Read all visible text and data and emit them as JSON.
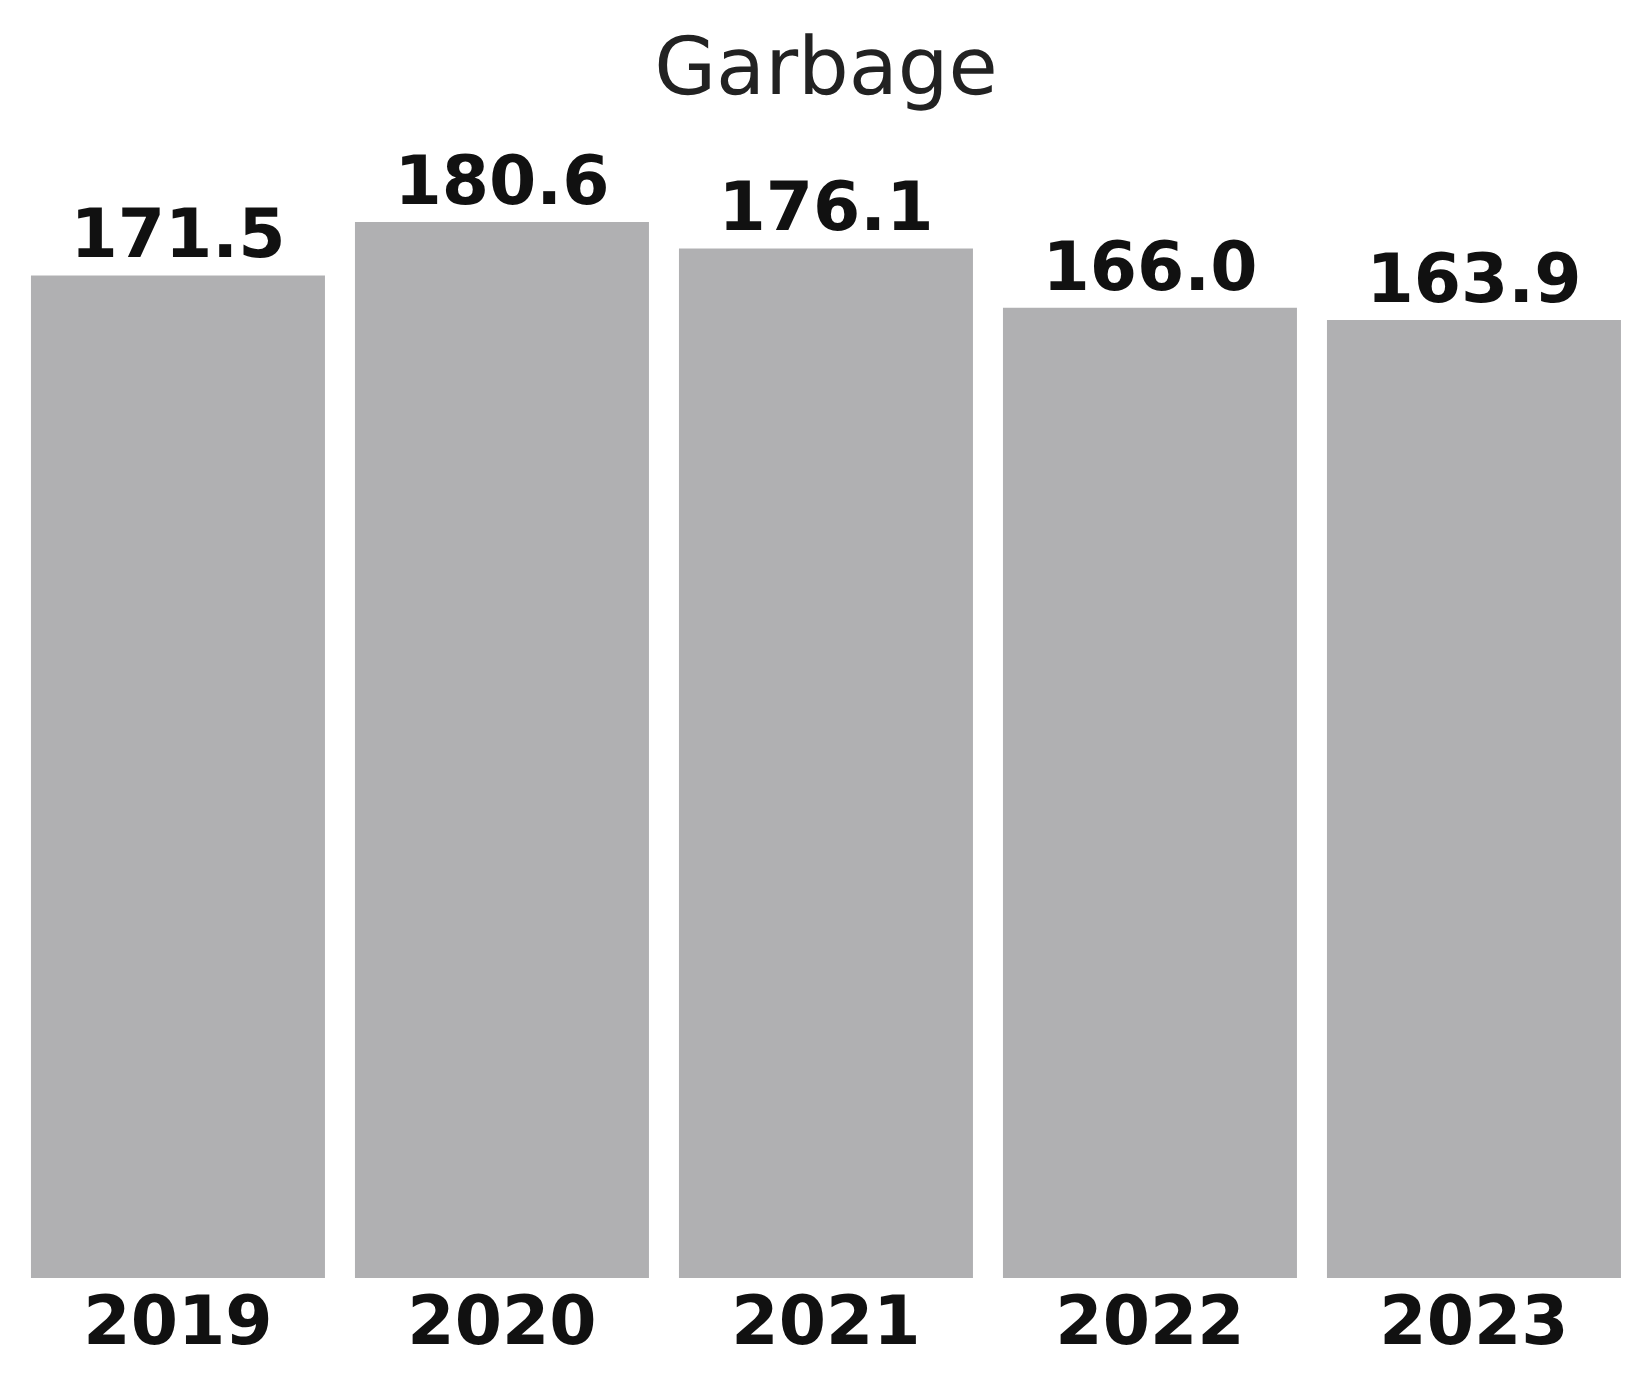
{
  "chart_data": {
    "type": "bar",
    "title": "Garbage",
    "categories": [
      "2019",
      "2020",
      "2021",
      "2022",
      "2023"
    ],
    "values": [
      171.5,
      180.6,
      176.1,
      166.0,
      163.9
    ],
    "value_labels": [
      "171.5",
      "180.6",
      "176.1",
      "166.0",
      "163.9"
    ],
    "color": "#b0b0b2",
    "grid": false,
    "legend": false
  }
}
